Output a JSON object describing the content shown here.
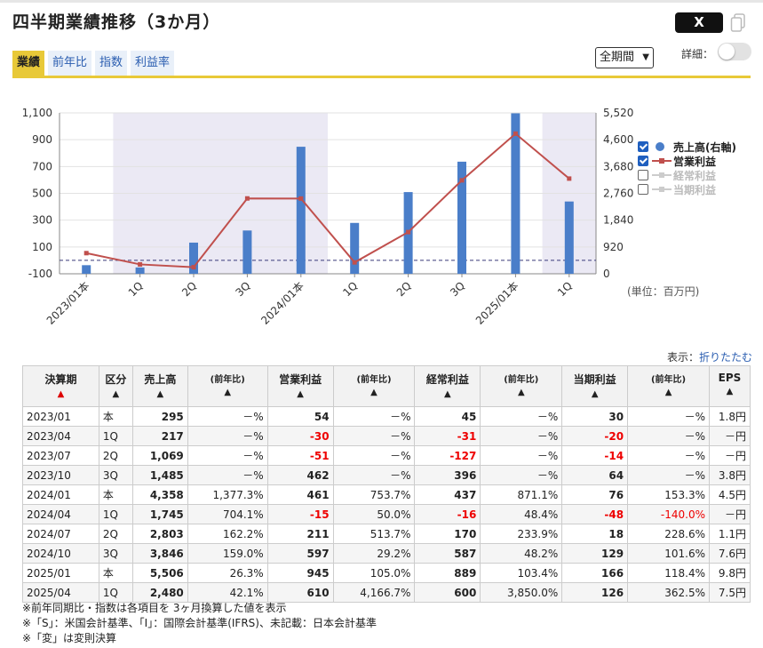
{
  "title": "四半期業績推移（3か月）",
  "share": {
    "x_label": "X"
  },
  "tabs": [
    {
      "label": "業績",
      "active": true
    },
    {
      "label": "前年比",
      "active": false
    },
    {
      "label": "指数",
      "active": false
    },
    {
      "label": "利益率",
      "active": false
    }
  ],
  "period_select": {
    "value": "全期間"
  },
  "detail": {
    "label": "詳細：",
    "toggle_on": false
  },
  "chart_data": {
    "type": "bar+line",
    "categories": [
      "2023/01本",
      "1Q",
      "2Q",
      "3Q",
      "2024/01本",
      "1Q",
      "2Q",
      "3Q",
      "2025/01本",
      "1Q"
    ],
    "left_axis": {
      "ticks": [
        "1,100",
        "900",
        "700",
        "500",
        "300",
        "100",
        "-100"
      ],
      "min": -100,
      "max": 1100
    },
    "right_axis": {
      "ticks": [
        "5,520",
        "4,600",
        "3,680",
        "2,760",
        "1,840",
        "920",
        "0"
      ],
      "min": 0,
      "max": 5520
    },
    "series": [
      {
        "name": "売上高(右軸)",
        "kind": "bar",
        "axis": "right",
        "color": "#4a7ec9",
        "values": [
          295,
          217,
          1069,
          1485,
          4358,
          1745,
          2803,
          3846,
          5506,
          2480
        ]
      },
      {
        "name": "営業利益",
        "kind": "line",
        "axis": "left",
        "color": "#c0504d",
        "values": [
          54,
          -30,
          -51,
          462,
          461,
          -15,
          211,
          597,
          945,
          610
        ]
      }
    ],
    "shaded_bands": [
      [
        1,
        4
      ],
      [
        9,
        9
      ]
    ],
    "zero_line": 0
  },
  "legend": [
    {
      "label": "売上高(右軸)",
      "checked": true,
      "symbol": "dot",
      "active": true
    },
    {
      "label": "営業利益",
      "checked": true,
      "symbol": "line",
      "active": true
    },
    {
      "label": "経常利益",
      "checked": false,
      "symbol": "line",
      "active": false
    },
    {
      "label": "当期利益",
      "checked": false,
      "symbol": "line",
      "active": false
    }
  ],
  "unit_label": "(単位：百万円)",
  "display": {
    "label": "表示：",
    "link": "折りたたむ"
  },
  "table": {
    "headers": [
      {
        "label": "決算期",
        "arrow": "▲",
        "red": true
      },
      {
        "label": "区分",
        "arrow": "▲"
      },
      {
        "label": "売上高",
        "arrow": "▲"
      },
      {
        "label": "(前年比)",
        "arrow": "▲",
        "sub": true
      },
      {
        "label": "営業利益",
        "arrow": "▲"
      },
      {
        "label": "(前年比)",
        "arrow": "▲",
        "sub": true
      },
      {
        "label": "経常利益",
        "arrow": "▲"
      },
      {
        "label": "(前年比)",
        "arrow": "▲",
        "sub": true
      },
      {
        "label": "当期利益",
        "arrow": "▲"
      },
      {
        "label": "(前年比)",
        "arrow": "▲",
        "sub": true
      },
      {
        "label": "EPS",
        "arrow": "▲"
      }
    ],
    "rows": [
      [
        "2023/01",
        "本",
        "295",
        "－%",
        "54",
        "－%",
        "45",
        "－%",
        "30",
        "－%",
        "1.8円"
      ],
      [
        "2023/04",
        "1Q",
        "217",
        "－%",
        "-30",
        "－%",
        "-31",
        "－%",
        "-20",
        "－%",
        "－円"
      ],
      [
        "2023/07",
        "2Q",
        "1,069",
        "－%",
        "-51",
        "－%",
        "-127",
        "－%",
        "-14",
        "－%",
        "－円"
      ],
      [
        "2023/10",
        "3Q",
        "1,485",
        "－%",
        "462",
        "－%",
        "396",
        "－%",
        "64",
        "－%",
        "3.8円"
      ],
      [
        "2024/01",
        "本",
        "4,358",
        "1,377.3%",
        "461",
        "753.7%",
        "437",
        "871.1%",
        "76",
        "153.3%",
        "4.5円"
      ],
      [
        "2024/04",
        "1Q",
        "1,745",
        "704.1%",
        "-15",
        "50.0%",
        "-16",
        "48.4%",
        "-48",
        "-140.0%",
        "－円"
      ],
      [
        "2024/07",
        "2Q",
        "2,803",
        "162.2%",
        "211",
        "513.7%",
        "170",
        "233.9%",
        "18",
        "228.6%",
        "1.1円"
      ],
      [
        "2024/10",
        "3Q",
        "3,846",
        "159.0%",
        "597",
        "29.2%",
        "587",
        "48.2%",
        "129",
        "101.6%",
        "7.6円"
      ],
      [
        "2025/01",
        "本",
        "5,506",
        "26.3%",
        "945",
        "105.0%",
        "889",
        "103.4%",
        "166",
        "118.4%",
        "9.8円"
      ],
      [
        "2025/04",
        "1Q",
        "2,480",
        "42.1%",
        "610",
        "4,166.7%",
        "600",
        "3,850.0%",
        "126",
        "362.5%",
        "7.5円"
      ]
    ]
  },
  "notes": [
    "※前年同期比・指数は各項目を 3ヶ月換算した値を表示",
    "※「S」：米国会計基準、「I」：国際会計基準(IFRS)、未記載：日本会計基準",
    "※「変」は変則決算"
  ]
}
